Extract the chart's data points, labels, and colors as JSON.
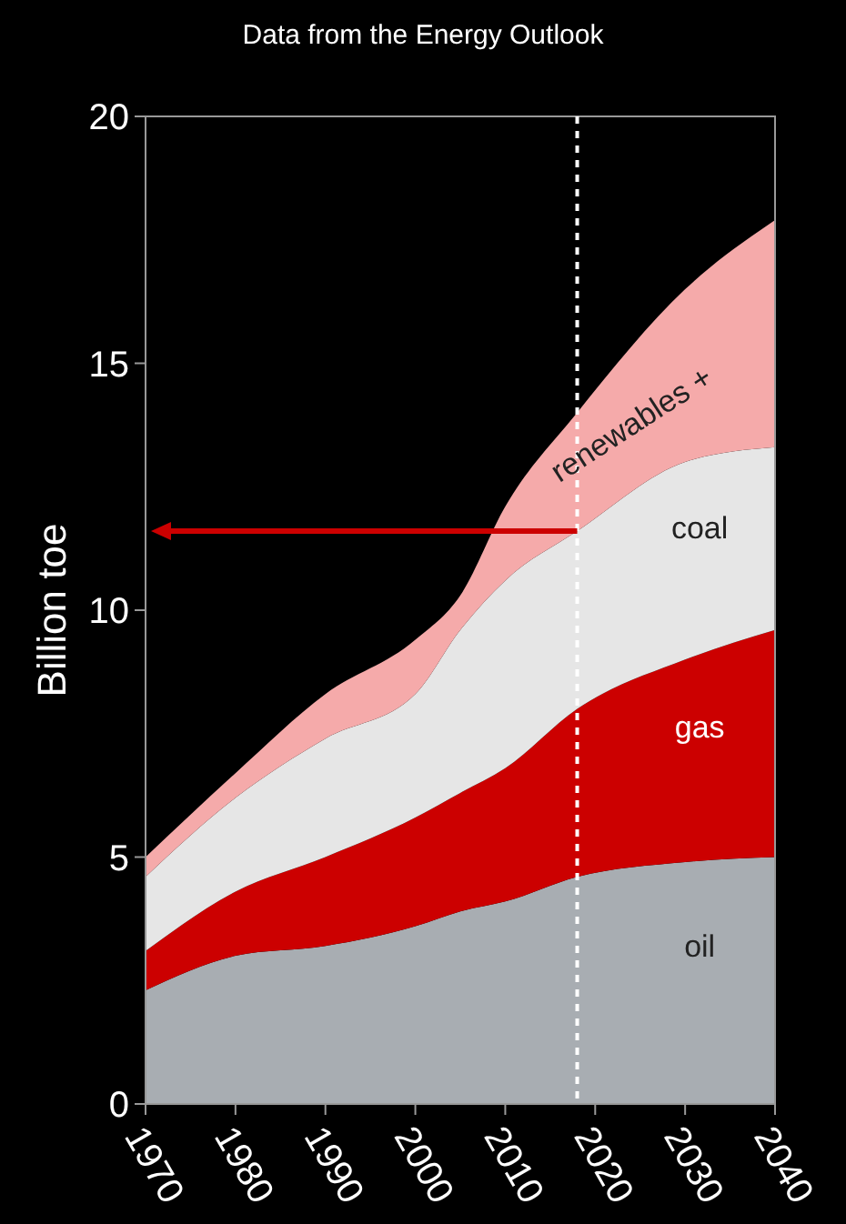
{
  "chart_data": {
    "type": "area",
    "stacked": true,
    "title": "Data from the Energy Outlook",
    "ylabel": "Billion toe",
    "x": [
      1970,
      1980,
      1990,
      2000,
      2005,
      2010,
      2018,
      2030,
      2040
    ],
    "xlim": [
      1970,
      2040
    ],
    "xticks": [
      1970,
      1980,
      1990,
      2000,
      2010,
      2020,
      2030,
      2040
    ],
    "ylim": [
      0,
      20
    ],
    "yticks": [
      0,
      5,
      10,
      15,
      20
    ],
    "grid": false,
    "series": [
      {
        "name": "oil",
        "color": "#a8adb2",
        "values": [
          2.3,
          3.0,
          3.2,
          3.6,
          3.9,
          4.1,
          4.6,
          4.9,
          5.0
        ]
      },
      {
        "name": "gas",
        "color": "#cc0000",
        "values": [
          0.8,
          1.3,
          1.8,
          2.2,
          2.4,
          2.7,
          3.4,
          4.1,
          4.6
        ]
      },
      {
        "name": "coal",
        "color": "#e6e6e6",
        "values": [
          1.5,
          1.9,
          2.4,
          2.5,
          3.3,
          3.8,
          3.6,
          4.0,
          3.7
        ]
      },
      {
        "name": "renewables +",
        "color": "#f5aaaa",
        "values": [
          0.4,
          0.5,
          0.9,
          1.1,
          0.7,
          1.5,
          2.4,
          3.5,
          4.6
        ]
      }
    ],
    "ref_lines": [
      {
        "axis": "x",
        "value": 2018,
        "color": "#ffffff",
        "line_style": "dashed"
      }
    ]
  }
}
